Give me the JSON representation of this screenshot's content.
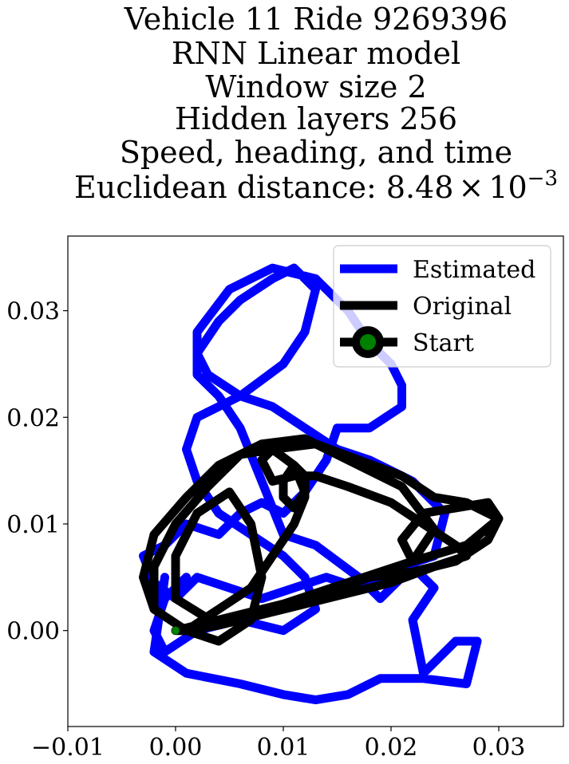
{
  "chart_data": {
    "type": "line",
    "title_lines": [
      "Vehicle 11 Ride 9269396",
      "RNN Linear model",
      "Window size 2",
      "Hidden layers 256",
      "Speed, heading, and time"
    ],
    "title_metric": {
      "prefix": "Euclidean distance: ",
      "mantissa": "8.48",
      "times": "×",
      "base": "10",
      "exponent": "−3"
    },
    "xlabel": "",
    "ylabel": "",
    "xlim": [
      -0.01,
      0.036
    ],
    "ylim": [
      -0.009,
      0.037
    ],
    "xticks": [
      -0.01,
      0.0,
      0.01,
      0.02,
      0.03
    ],
    "xtick_labels": [
      "−0.01",
      "0.00",
      "0.01",
      "0.02",
      "0.03"
    ],
    "yticks": [
      0.0,
      0.01,
      0.02,
      0.03
    ],
    "ytick_labels": [
      "0.00",
      "0.01",
      "0.02",
      "0.03"
    ],
    "grid": false,
    "legend_position": "top-right",
    "legend": [
      "Estimated",
      "Original",
      "Start"
    ],
    "series": [
      {
        "name": "Estimated",
        "color": "#0000ff",
        "x": [
          -0.001,
          -0.002,
          0.001,
          0.006,
          0.01,
          0.013,
          0.016,
          0.019,
          0.023,
          0.027,
          0.028,
          0.026,
          0.023,
          0.022,
          0.024,
          0.022,
          0.019,
          0.017,
          0.013,
          0.01,
          0.008,
          0.006,
          0.004,
          0.002,
          0.002,
          0.005,
          0.009,
          0.013,
          0.016,
          0.018,
          0.02,
          0.021,
          0.021,
          0.018,
          0.015,
          0.014,
          0.012,
          0.01,
          0.008,
          0.006,
          0.004,
          0.001,
          -0.001,
          -0.003,
          -0.002,
          0.0,
          0.002,
          0.005,
          0.008,
          0.011,
          0.014,
          0.017,
          0.021,
          0.024,
          0.025,
          0.022,
          0.018,
          0.015,
          0.012,
          0.009,
          0.006,
          0.003,
          0.002,
          0.004,
          0.006,
          0.009,
          0.011,
          0.013,
          0.012,
          0.01,
          0.006,
          0.002,
          0.001,
          0.002,
          0.004,
          0.007,
          0.01,
          0.012,
          0.013,
          0.01,
          0.006,
          0.002,
          -0.001,
          -0.002,
          -0.001,
          0.001
        ],
        "y": [
          0.005,
          -0.002,
          -0.004,
          -0.005,
          -0.006,
          -0.0065,
          -0.006,
          -0.0045,
          -0.0045,
          -0.005,
          -0.001,
          -0.001,
          -0.004,
          0.001,
          0.004,
          0.006,
          0.003,
          0.005,
          0.008,
          0.009,
          0.014,
          0.019,
          0.022,
          0.024,
          0.028,
          0.032,
          0.034,
          0.033,
          0.03,
          0.027,
          0.025,
          0.023,
          0.021,
          0.019,
          0.019,
          0.016,
          0.013,
          0.011,
          0.012,
          0.011,
          0.009,
          0.01,
          0.008,
          0.007,
          0.0045,
          0.003,
          0.005,
          0.004,
          0.003,
          0.004,
          0.005,
          0.004,
          0.006,
          0.007,
          0.011,
          0.014,
          0.016,
          0.017,
          0.019,
          0.021,
          0.022,
          0.024,
          0.026,
          0.029,
          0.031,
          0.033,
          0.034,
          0.032,
          0.028,
          0.025,
          0.022,
          0.02,
          0.017,
          0.014,
          0.011,
          0.009,
          0.007,
          0.005,
          0.002,
          0.0,
          0.001,
          0.0,
          -0.002,
          0.0,
          0.003,
          0.005
        ]
      },
      {
        "name": "Original",
        "color": "#000000",
        "x": [
          0.0,
          0.004,
          0.01,
          0.016,
          0.022,
          0.027,
          0.03,
          0.029,
          0.026,
          0.023,
          0.021,
          0.022,
          0.024,
          0.021,
          0.017,
          0.012,
          0.008,
          0.004,
          0.001,
          -0.002,
          -0.003,
          -0.002,
          0.001,
          0.004,
          0.007,
          0.008,
          0.007,
          0.005,
          0.002,
          0.0,
          0.0,
          0.004,
          0.009,
          0.014,
          0.018,
          0.022,
          0.026,
          0.029,
          0.03,
          0.027,
          0.024,
          0.021,
          0.017,
          0.013,
          0.009,
          0.006,
          0.003,
          0.0,
          -0.002,
          -0.002,
          0.001,
          0.004,
          0.007,
          0.009,
          0.011,
          0.012,
          0.012,
          0.011,
          0.01,
          0.01,
          0.011,
          0.012,
          0.011,
          0.009,
          0.008,
          0.009,
          0.011,
          0.013,
          0.016,
          0.02,
          0.023,
          0.026,
          0.027,
          0.024,
          0.02,
          0.016,
          0.012,
          0.008,
          0.004,
          0.001,
          0.0
        ],
        "y": [
          0.0,
          0.001,
          0.0025,
          0.0045,
          0.0065,
          0.008,
          0.0105,
          0.012,
          0.0115,
          0.011,
          0.0085,
          0.0065,
          0.0095,
          0.0135,
          0.0155,
          0.018,
          0.0175,
          0.0155,
          0.0125,
          0.009,
          0.005,
          0.002,
          0.0,
          -0.001,
          0.001,
          0.005,
          0.01,
          0.013,
          0.011,
          0.007,
          0.003,
          0.0005,
          0.002,
          0.0035,
          0.005,
          0.0055,
          0.0065,
          0.0085,
          0.0105,
          0.012,
          0.0125,
          0.0145,
          0.016,
          0.0175,
          0.017,
          0.0165,
          0.0135,
          0.01,
          0.006,
          0.002,
          0.0,
          0.002,
          0.004,
          0.007,
          0.01,
          0.0125,
          0.0145,
          0.0155,
          0.014,
          0.0125,
          0.0115,
          0.013,
          0.0155,
          0.017,
          0.016,
          0.014,
          0.0145,
          0.0145,
          0.0135,
          0.012,
          0.01,
          0.008,
          0.007,
          0.006,
          0.0045,
          0.0035,
          0.0025,
          0.0015,
          0.0005,
          0.0,
          0.0
        ]
      }
    ],
    "start_point": {
      "name": "Start",
      "x": 0.0,
      "y": 0.0,
      "color": "#008000",
      "edge_color": "#000000"
    }
  }
}
